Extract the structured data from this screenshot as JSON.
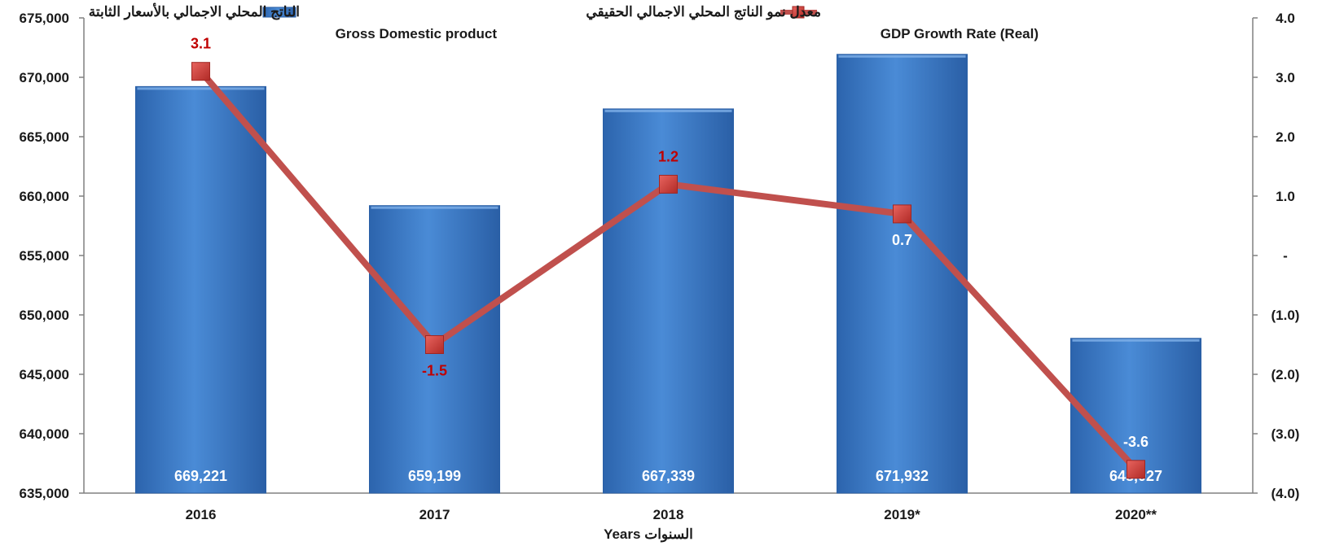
{
  "chart_data": {
    "type": "bar",
    "categories": [
      "2016",
      "2017",
      "2018",
      "2019*",
      "2020**"
    ],
    "series": [
      {
        "name": "الناتج المحلي الاجمالي بالأسعار الثابتة",
        "name_en": "Gross Domestic product",
        "type": "bar",
        "axis": "left",
        "values": [
          669221,
          659199,
          667339,
          671932,
          648027
        ],
        "labels": [
          "669,221",
          "659,199",
          "667,339",
          "671,932",
          "648,027"
        ],
        "color": "#3a7cc8"
      },
      {
        "name": "معدل نمو الناتج المحلي الاجمالي الحقيقي",
        "name_en": "GDP Growth Rate (Real)",
        "type": "line",
        "axis": "right",
        "values": [
          3.1,
          -1.5,
          1.2,
          0.7,
          -3.6
        ],
        "labels": [
          "3.1",
          "-1.5",
          "1.2",
          "0.7",
          "-3.6"
        ],
        "label_colors": [
          "#c00000",
          "#c00000",
          "#c00000",
          "#ffffff",
          "#ffffff"
        ],
        "color": "#c0504d"
      }
    ],
    "y_left": {
      "range": [
        635000,
        675000
      ],
      "ticks": [
        635000,
        640000,
        645000,
        650000,
        655000,
        660000,
        665000,
        670000,
        675000
      ],
      "tick_labels": [
        "635,000",
        "640,000",
        "645,000",
        "650,000",
        "655,000",
        "660,000",
        "665,000",
        "670,000",
        "675,000"
      ]
    },
    "y_right": {
      "range": [
        -4,
        4
      ],
      "ticks": [
        -4,
        -3,
        -2,
        -1,
        0,
        1,
        2,
        3,
        4
      ],
      "tick_labels": [
        "(4.0)",
        "(3.0)",
        "(2.0)",
        "(1.0)",
        "-",
        "1.0",
        "2.0",
        "3.0",
        "4.0"
      ]
    },
    "xlabel": "السنوات Years",
    "grid": false,
    "legend_position": "top"
  }
}
